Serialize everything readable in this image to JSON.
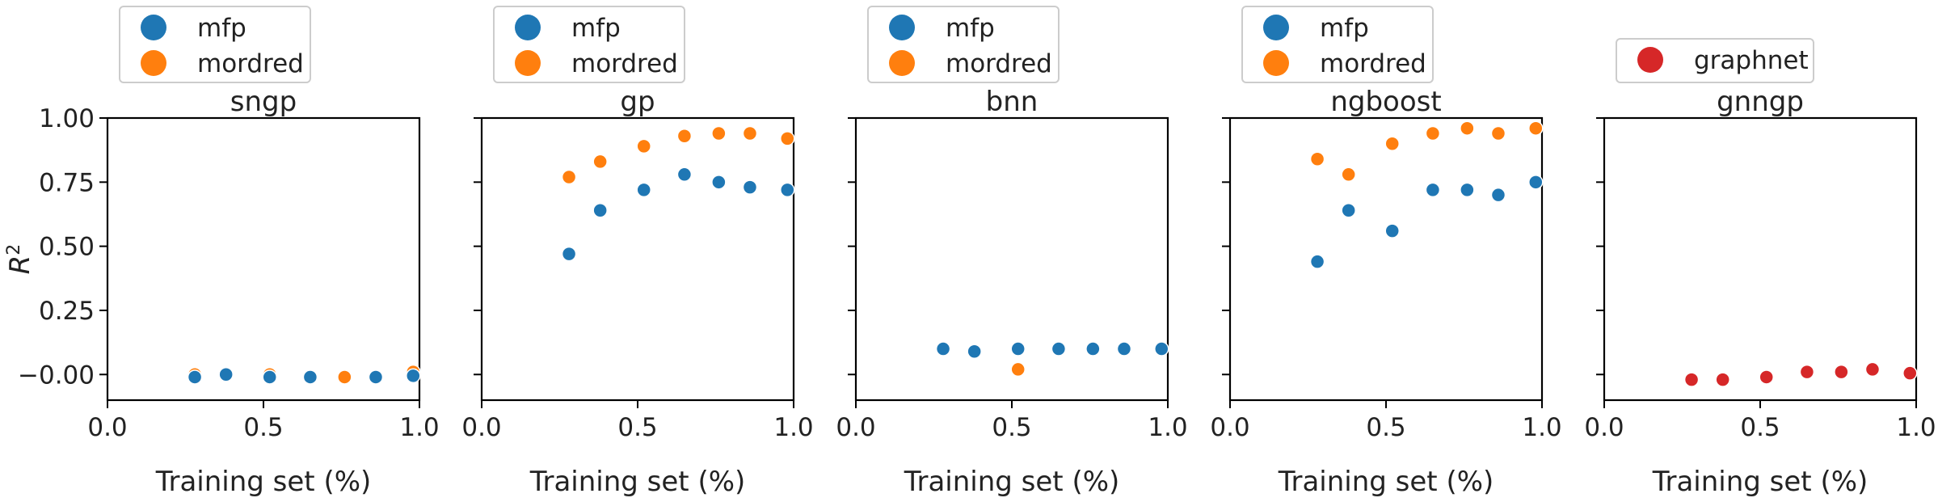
{
  "colors": {
    "mfp": "#1f77b4",
    "mordred": "#ff7f0e",
    "graphnet": "#d62728"
  },
  "chart_data": [
    {
      "type": "scatter",
      "title": "sngp",
      "xlabel": "Training set (%)",
      "ylabel": "R",
      "ylabel_sup": "2",
      "xlim": [
        0.0,
        1.0
      ],
      "ylim": [
        -0.1,
        1.0
      ],
      "xticks": [
        "0.0",
        "0.5",
        "1.0"
      ],
      "yticks": [
        "−0.00",
        "0.25",
        "0.50",
        "0.75",
        "1.00"
      ],
      "legend": "top-left",
      "series": [
        {
          "name": "mordred",
          "color": "#ff7f0e",
          "x": [
            0.28,
            0.52,
            0.76,
            0.98
          ],
          "y": [
            0.0,
            0.0,
            -0.01,
            0.01
          ]
        },
        {
          "name": "mfp",
          "color": "#1f77b4",
          "x": [
            0.28,
            0.38,
            0.52,
            0.65,
            0.86,
            0.98
          ],
          "y": [
            -0.01,
            0.0,
            -0.01,
            -0.01,
            -0.01,
            -0.005
          ]
        }
      ]
    },
    {
      "type": "scatter",
      "title": "gp",
      "xlabel": "Training set (%)",
      "xlim": [
        0.0,
        1.0
      ],
      "ylim": [
        -0.1,
        1.0
      ],
      "xticks": [
        "0.0",
        "0.5",
        "1.0"
      ],
      "legend": "top-left",
      "series": [
        {
          "name": "mfp",
          "color": "#1f77b4",
          "x": [
            0.28,
            0.38,
            0.52,
            0.65,
            0.76,
            0.86,
            0.98
          ],
          "y": [
            0.47,
            0.64,
            0.72,
            0.78,
            0.75,
            0.73,
            0.72
          ]
        },
        {
          "name": "mordred",
          "color": "#ff7f0e",
          "x": [
            0.28,
            0.38,
            0.52,
            0.65,
            0.76,
            0.86,
            0.98
          ],
          "y": [
            0.77,
            0.83,
            0.89,
            0.93,
            0.94,
            0.94,
            0.92
          ]
        }
      ]
    },
    {
      "type": "scatter",
      "title": "bnn",
      "xlabel": "Training set (%)",
      "xlim": [
        0.0,
        1.0
      ],
      "ylim": [
        -0.1,
        1.0
      ],
      "xticks": [
        "0.0",
        "0.5",
        "1.0"
      ],
      "legend": "top-left",
      "series": [
        {
          "name": "mfp",
          "color": "#1f77b4",
          "x": [
            0.28,
            0.38,
            0.52,
            0.65,
            0.76,
            0.86,
            0.98
          ],
          "y": [
            0.1,
            0.09,
            0.1,
            0.1,
            0.1,
            0.1,
            0.1
          ]
        },
        {
          "name": "mordred",
          "color": "#ff7f0e",
          "x": [
            0.52
          ],
          "y": [
            0.02
          ]
        }
      ]
    },
    {
      "type": "scatter",
      "title": "ngboost",
      "xlabel": "Training set (%)",
      "xlim": [
        0.0,
        1.0
      ],
      "ylim": [
        -0.1,
        1.0
      ],
      "xticks": [
        "0.0",
        "0.5",
        "1.0"
      ],
      "legend": "top-left",
      "series": [
        {
          "name": "mfp",
          "color": "#1f77b4",
          "x": [
            0.28,
            0.38,
            0.52,
            0.65,
            0.76,
            0.86,
            0.98
          ],
          "y": [
            0.44,
            0.64,
            0.56,
            0.72,
            0.72,
            0.7,
            0.75
          ]
        },
        {
          "name": "mordred",
          "color": "#ff7f0e",
          "x": [
            0.28,
            0.38,
            0.52,
            0.65,
            0.76,
            0.86,
            0.98
          ],
          "y": [
            0.84,
            0.78,
            0.9,
            0.94,
            0.96,
            0.94,
            0.96
          ]
        }
      ]
    },
    {
      "type": "scatter",
      "title": "gnngp",
      "xlabel": "Training set (%)",
      "xlim": [
        0.0,
        1.0
      ],
      "ylim": [
        -0.1,
        1.0
      ],
      "xticks": [
        "0.0",
        "0.5",
        "1.0"
      ],
      "legend": "top-center",
      "series": [
        {
          "name": "graphnet",
          "color": "#d62728",
          "x": [
            0.28,
            0.38,
            0.52,
            0.65,
            0.76,
            0.86,
            0.98
          ],
          "y": [
            -0.02,
            -0.02,
            -0.01,
            0.01,
            0.01,
            0.02,
            0.005
          ]
        }
      ]
    }
  ]
}
